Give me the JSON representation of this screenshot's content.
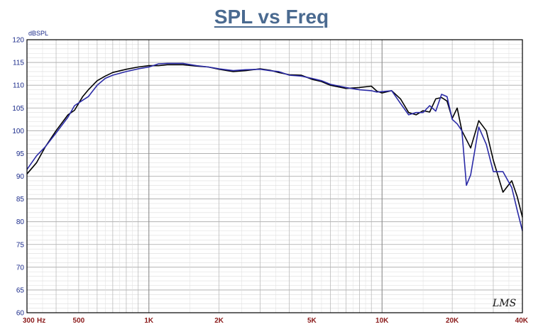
{
  "chart_data": {
    "type": "line",
    "title": "SPL vs Freq",
    "ylabel": "dBSPL",
    "xlabel": "",
    "xscale": "log",
    "xlim": [
      300,
      40000
    ],
    "ylim": [
      60,
      120
    ],
    "grid": true,
    "watermark": "LMS",
    "yticks": [
      "60",
      "65",
      "70",
      "75",
      "80",
      "85",
      "90",
      "95",
      "100",
      "105",
      "110",
      "115",
      "120"
    ],
    "xticks": [
      {
        "value": 300,
        "label": "300"
      },
      {
        "value": 500,
        "label": "500"
      },
      {
        "value": 1000,
        "label": "1K"
      },
      {
        "value": 2000,
        "label": "2K"
      },
      {
        "value": 5000,
        "label": "5K"
      },
      {
        "value": 10000,
        "label": "10K"
      },
      {
        "value": 20000,
        "label": "20K"
      },
      {
        "value": 40000,
        "label": "40K"
      }
    ],
    "xunit": "Hz",
    "series": [
      {
        "color": "#000000",
        "x": [
          300,
          330,
          360,
          400,
          450,
          480,
          520,
          550,
          600,
          650,
          700,
          800,
          900,
          1000,
          1100,
          1200,
          1400,
          1600,
          1800,
          2000,
          2300,
          2600,
          3000,
          3300,
          3600,
          4000,
          4500,
          5000,
          5500,
          6000,
          7000,
          8000,
          9000,
          9500,
          10000,
          11000,
          12000,
          13000,
          14000,
          15000,
          16000,
          17000,
          18000,
          19000,
          20000,
          21000,
          22000,
          24000,
          26000,
          28000,
          30000,
          33000,
          36000,
          38000,
          40000
        ],
        "y": [
          90.5,
          93,
          96.5,
          100,
          103.5,
          104.5,
          107.5,
          109,
          111,
          112,
          112.8,
          113.5,
          114,
          114.3,
          114.3,
          114.5,
          114.5,
          114.2,
          114,
          113.5,
          113,
          113.2,
          113.6,
          113.3,
          112.8,
          112.3,
          112.2,
          111.3,
          110.8,
          110,
          109.3,
          109.5,
          109.8,
          108.7,
          108.3,
          108.8,
          107,
          104,
          103.5,
          104.4,
          104.1,
          107,
          107.3,
          106.5,
          102.7,
          105,
          100,
          96.2,
          102.2,
          100,
          93.5,
          86.5,
          89,
          85.5,
          81
        ]
      },
      {
        "color": "#2a2aa6",
        "x": [
          300,
          330,
          360,
          400,
          450,
          480,
          520,
          550,
          600,
          650,
          700,
          800,
          900,
          1000,
          1100,
          1200,
          1400,
          1600,
          1800,
          2000,
          2300,
          2600,
          3000,
          3300,
          3600,
          4000,
          4500,
          5000,
          5500,
          6000,
          7000,
          8000,
          9000,
          9500,
          10000,
          11000,
          12000,
          13000,
          14000,
          15000,
          16000,
          17000,
          18000,
          19000,
          20000,
          21000,
          22000,
          23000,
          24000,
          26000,
          28000,
          30000,
          33000,
          36000,
          38000,
          40000
        ],
        "y": [
          91.5,
          94.5,
          96.5,
          99.5,
          103,
          105.5,
          106.7,
          107.5,
          110,
          111.5,
          112.2,
          113,
          113.6,
          114,
          114.7,
          114.8,
          114.8,
          114.3,
          114,
          113.6,
          113.2,
          113.4,
          113.5,
          113.2,
          113,
          112.2,
          112,
          111.5,
          111,
          110.2,
          109.5,
          109,
          108.8,
          108.5,
          108.6,
          108.8,
          106,
          103.5,
          104,
          104,
          105.5,
          104.3,
          108,
          107.5,
          102.5,
          101.5,
          100,
          88,
          90.3,
          100.8,
          97,
          91,
          91,
          87.5,
          82.5,
          78
        ]
      }
    ]
  }
}
